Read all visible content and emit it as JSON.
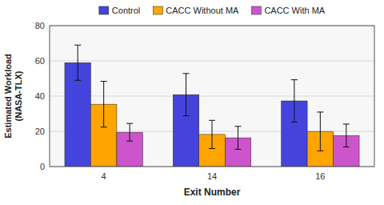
{
  "chart_data": {
    "type": "bar",
    "categories": [
      "4",
      "14",
      "16"
    ],
    "series": [
      {
        "name": "Control",
        "color": "#4444DD",
        "values": [
          58.96,
          40.82,
          37.27
        ],
        "errors": [
          10.0,
          12.0,
          12.0
        ]
      },
      {
        "name": "CACC Without MA",
        "color": "#FFA500",
        "values": [
          35.38,
          18.23,
          19.94
        ],
        "errors": [
          13.0,
          8.0,
          11.0
        ]
      },
      {
        "name": "CACC With MA",
        "color": "#CC55CC",
        "values": [
          19.47,
          16.32,
          17.63
        ],
        "errors": [
          5.0,
          6.5,
          6.5
        ]
      }
    ],
    "xlabel": "Exit Number",
    "ylabel": "Estimated Workload\n(NASA-TLX)",
    "ylim": [
      0,
      80
    ],
    "yticks": [
      0,
      20,
      40,
      60,
      80
    ],
    "grid": true,
    "legend": "top"
  }
}
